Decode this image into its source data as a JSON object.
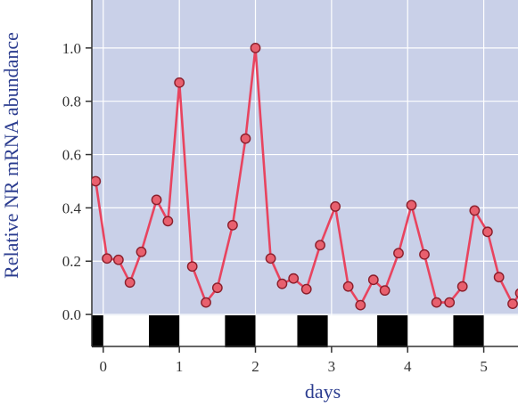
{
  "chart_data": {
    "type": "line",
    "xlabel": "days",
    "ylabel": "Relative NR mRNA abundance",
    "xlim": [
      -0.15,
      5.45
    ],
    "ylim": [
      -0.12,
      1.18
    ],
    "x_ticks": [
      "0",
      "1",
      "2",
      "3",
      "4",
      "5"
    ],
    "y_ticks": [
      "0.0",
      "0.2",
      "0.4",
      "0.6",
      "0.8",
      "1.0"
    ],
    "grid": true,
    "colors": {
      "plot_bg": "#c9d0e8",
      "line": "#e8445f",
      "marker_fill": "#e8606e",
      "marker_edge": "#8a1e2b",
      "grid": "#ffffff",
      "axis_title": "#2b3c8f"
    },
    "series": [
      {
        "x": [
          -0.1,
          0.05,
          0.2,
          0.35,
          0.5,
          0.7,
          0.85,
          1.0,
          1.17,
          1.35,
          1.5,
          1.7,
          1.87,
          2.0,
          2.2,
          2.35,
          2.5,
          2.67,
          2.85,
          3.05,
          3.22,
          3.38,
          3.55,
          3.7,
          3.88,
          4.05,
          4.22,
          4.38,
          4.55,
          4.72,
          4.88,
          5.05,
          5.2,
          5.38,
          5.48
        ],
        "y": [
          0.5,
          0.21,
          0.205,
          0.12,
          0.235,
          0.43,
          0.35,
          0.87,
          0.18,
          0.045,
          0.1,
          0.335,
          0.66,
          1.0,
          0.21,
          0.115,
          0.135,
          0.095,
          0.26,
          0.405,
          0.105,
          0.035,
          0.13,
          0.09,
          0.23,
          0.41,
          0.225,
          0.045,
          0.045,
          0.105,
          0.39,
          0.31,
          0.14,
          0.04,
          0.08
        ]
      }
    ],
    "light_dark_bar": {
      "dark_periods": [
        [
          -0.15,
          0.0
        ],
        [
          0.6,
          1.0
        ],
        [
          1.6,
          2.0
        ],
        [
          2.55,
          2.95
        ],
        [
          3.6,
          4.0
        ],
        [
          4.6,
          5.0
        ]
      ]
    }
  }
}
